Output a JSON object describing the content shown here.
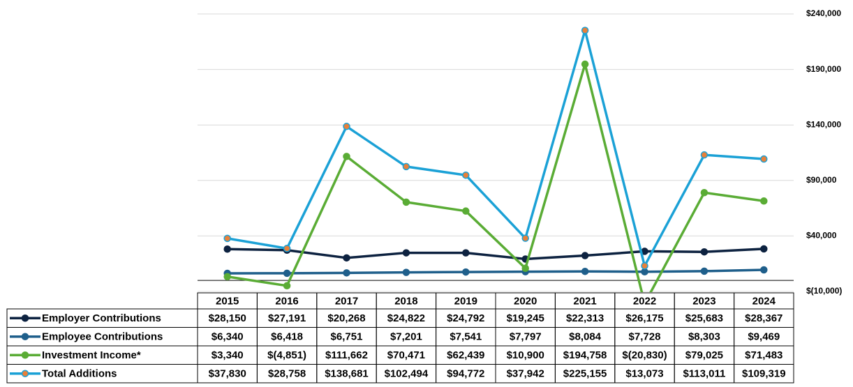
{
  "chart_data": {
    "type": "line",
    "categories": [
      "2015",
      "2016",
      "2017",
      "2018",
      "2019",
      "2020",
      "2021",
      "2022",
      "2023",
      "2024"
    ],
    "ylim": [
      -10000,
      240000
    ],
    "yticks": [
      {
        "value": -10000,
        "label": "$(10,000)"
      },
      {
        "value": 40000,
        "label": "$40,000"
      },
      {
        "value": 90000,
        "label": "$90,000"
      },
      {
        "value": 140000,
        "label": "$140,000"
      },
      {
        "value": 190000,
        "label": "$190,000"
      },
      {
        "value": 240000,
        "label": "$240,000"
      }
    ],
    "grid": true,
    "series": [
      {
        "name": "Employer Contributions",
        "color": "#0d2240",
        "marker_color": "#0d2240",
        "values": [
          28150,
          27191,
          20268,
          24822,
          24792,
          19245,
          22313,
          26175,
          25683,
          28367
        ],
        "value_labels": [
          "$28,150",
          "$27,191",
          "$20,268",
          "$24,822",
          "$24,792",
          "$19,245",
          "$22,313",
          "$26,175",
          "$25,683",
          "$28,367"
        ]
      },
      {
        "name": "Employee Contributions",
        "color": "#1f5f8b",
        "marker_color": "#1f5f8b",
        "values": [
          6340,
          6418,
          6751,
          7201,
          7541,
          7797,
          8084,
          7728,
          8303,
          9469
        ],
        "value_labels": [
          "$6,340",
          "$6,418",
          "$6,751",
          "$7,201",
          "$7,541",
          "$7,797",
          "$8,084",
          "$7,728",
          "$8,303",
          "$9,469"
        ]
      },
      {
        "name": "Investment Income*",
        "color": "#5aac35",
        "marker_color": "#5aac35",
        "values": [
          3340,
          -4851,
          111662,
          70471,
          62439,
          10900,
          194758,
          -20830,
          79025,
          71483
        ],
        "value_labels": [
          "$3,340",
          "$(4,851)",
          "$111,662",
          "$70,471",
          "$62,439",
          "$10,900",
          "$194,758",
          "$(20,830)",
          "$79,025",
          "$71,483"
        ]
      },
      {
        "name": "Total Additions",
        "color": "#1ba1d6",
        "marker_color": "#e8803a",
        "values": [
          37830,
          28758,
          138681,
          102494,
          94772,
          37942,
          225155,
          13073,
          113011,
          109319
        ],
        "value_labels": [
          "$37,830",
          "$28,758",
          "$138,681",
          "$102,494",
          "$94,772",
          "$37,942",
          "$225,155",
          "$13,073",
          "$113,011",
          "$109,319"
        ]
      }
    ]
  }
}
